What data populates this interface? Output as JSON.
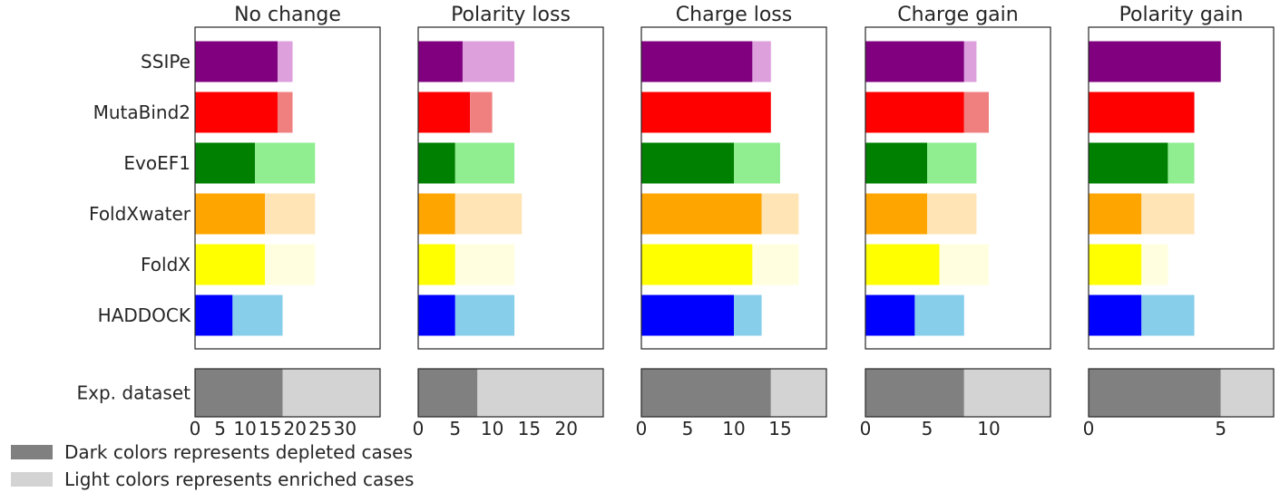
{
  "chart_data": {
    "type": "bar",
    "orientation": "horizontal",
    "layout": "stacked",
    "methods": [
      "SSIPe",
      "MutaBind2",
      "EvoEF1",
      "FoldXwater",
      "FoldX",
      "HADDOCK"
    ],
    "bottom_row_label": "Exp. dataset",
    "colors": {
      "dark": [
        "#800080",
        "#ff0000",
        "#008000",
        "#ffa500",
        "#ffff00",
        "#0000ff"
      ],
      "light": [
        "#dda0dd",
        "#f08080",
        "#90ee90",
        "#ffe4b5",
        "#ffffe0",
        "#87ceeb"
      ],
      "dataset_dark": "#808080",
      "dataset_light": "#d3d3d3"
    },
    "legend": {
      "placement": "bottom-left",
      "entries": [
        {
          "label": "Dark colors represents depleted cases",
          "color": "#808080"
        },
        {
          "label": "Light colors represents enriched cases",
          "color": "#d3d3d3"
        }
      ]
    },
    "grid": false,
    "panels": [
      {
        "title": "No change",
        "xlim": [
          0,
          37
        ],
        "xticks": [
          0,
          5,
          10,
          15,
          20,
          25,
          30
        ],
        "depleted": [
          16.5,
          16.5,
          12,
          14,
          14,
          7.5
        ],
        "enriched": [
          3,
          3,
          12,
          10,
          10,
          10
        ],
        "dataset": {
          "depleted": 17.5,
          "enriched": 19.5
        }
      },
      {
        "title": "Polarity loss",
        "xlim": [
          0,
          25
        ],
        "xticks": [
          0,
          5,
          10,
          15,
          20
        ],
        "depleted": [
          6,
          7,
          5,
          5,
          5,
          5
        ],
        "enriched": [
          7,
          3,
          8,
          9,
          8,
          8
        ],
        "dataset": {
          "depleted": 8,
          "enriched": 17
        }
      },
      {
        "title": "Charge loss",
        "xlim": [
          0,
          20
        ],
        "xticks": [
          0,
          5,
          10,
          15
        ],
        "depleted": [
          12,
          14,
          10,
          13,
          12,
          10
        ],
        "enriched": [
          2,
          0,
          5,
          4,
          5,
          3
        ],
        "dataset": {
          "depleted": 14,
          "enriched": 6
        }
      },
      {
        "title": "Charge gain",
        "xlim": [
          0,
          15
        ],
        "xticks": [
          0,
          5,
          10
        ],
        "depleted": [
          8,
          8,
          5,
          5,
          6,
          4
        ],
        "enriched": [
          1,
          2,
          4,
          4,
          4,
          4
        ],
        "dataset": {
          "depleted": 8,
          "enriched": 7
        }
      },
      {
        "title": "Polarity gain",
        "xlim": [
          0,
          7
        ],
        "xticks": [
          0,
          5
        ],
        "depleted": [
          5,
          4,
          3,
          2,
          2,
          2
        ],
        "enriched": [
          0,
          0,
          1,
          2,
          1,
          2
        ],
        "dataset": {
          "depleted": 5,
          "enriched": 2
        }
      }
    ]
  }
}
